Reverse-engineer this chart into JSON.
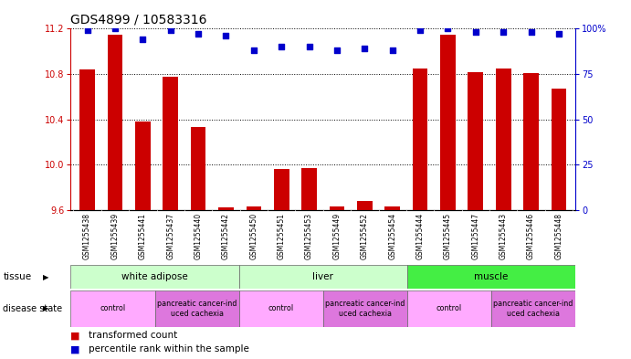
{
  "title": "GDS4899 / 10583316",
  "samples": [
    "GSM1255438",
    "GSM1255439",
    "GSM1255441",
    "GSM1255437",
    "GSM1255440",
    "GSM1255442",
    "GSM1255450",
    "GSM1255451",
    "GSM1255453",
    "GSM1255449",
    "GSM1255452",
    "GSM1255454",
    "GSM1255444",
    "GSM1255445",
    "GSM1255447",
    "GSM1255443",
    "GSM1255446",
    "GSM1255448"
  ],
  "transformed_count": [
    10.84,
    11.15,
    10.38,
    10.78,
    10.33,
    9.62,
    9.63,
    9.96,
    9.97,
    9.63,
    9.68,
    9.63,
    10.85,
    11.15,
    10.82,
    10.85,
    10.81,
    10.67
  ],
  "percentile_rank": [
    99,
    100,
    94,
    99,
    97,
    96,
    88,
    90,
    90,
    88,
    89,
    88,
    99,
    100,
    98,
    98,
    98,
    97
  ],
  "ylim_left": [
    9.6,
    11.2
  ],
  "ylim_right": [
    0,
    100
  ],
  "yticks_left": [
    9.6,
    10.0,
    10.4,
    10.8,
    11.2
  ],
  "yticks_right": [
    0,
    25,
    50,
    75,
    100
  ],
  "bar_color": "#cc0000",
  "dot_color": "#0000cc",
  "bar_bottom": 9.6,
  "tissue_groups": [
    {
      "label": "white adipose",
      "start": 0,
      "end": 6,
      "color": "#ccffcc"
    },
    {
      "label": "liver",
      "start": 6,
      "end": 12,
      "color": "#ccffcc"
    },
    {
      "label": "muscle",
      "start": 12,
      "end": 18,
      "color": "#44ee44"
    }
  ],
  "disease_groups": [
    {
      "label": "control",
      "start": 0,
      "end": 3,
      "color": "#ffaaff"
    },
    {
      "label": "pancreatic cancer-ind\nuced cachexia",
      "start": 3,
      "end": 6,
      "color": "#dd77dd"
    },
    {
      "label": "control",
      "start": 6,
      "end": 9,
      "color": "#ffaaff"
    },
    {
      "label": "pancreatic cancer-ind\nuced cachexia",
      "start": 9,
      "end": 12,
      "color": "#dd77dd"
    },
    {
      "label": "control",
      "start": 12,
      "end": 15,
      "color": "#ffaaff"
    },
    {
      "label": "pancreatic cancer-ind\nuced cachexia",
      "start": 15,
      "end": 18,
      "color": "#dd77dd"
    }
  ],
  "legend_items": [
    {
      "color": "#cc0000",
      "label": "transformed count"
    },
    {
      "color": "#0000cc",
      "label": "percentile rank within the sample"
    }
  ]
}
